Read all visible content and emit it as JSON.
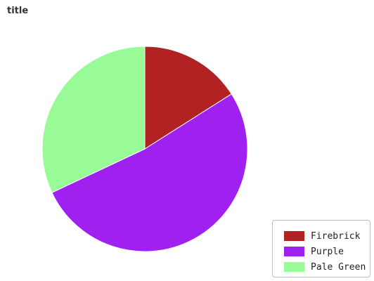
{
  "chart_data": {
    "type": "pie",
    "title": "title",
    "legend_position": "bottom-right",
    "slices": [
      {
        "label": "Firebrick",
        "value": 16,
        "color": "#b22222"
      },
      {
        "label": "Purple",
        "value": 52,
        "color": "#a020f0"
      },
      {
        "label": "Pale Green",
        "value": 32,
        "color": "#98fb98"
      }
    ]
  }
}
